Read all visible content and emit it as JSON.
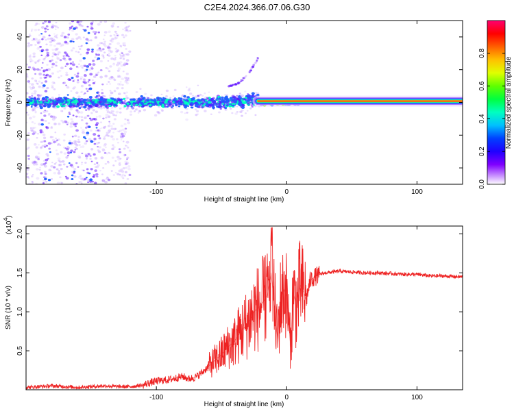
{
  "title": "C2E4.2024.366.07.06.G30",
  "chart_data": [
    {
      "type": "heatmap",
      "title": "C2E4.2024.366.07.06.G30",
      "xlabel": "Height of straight line (km)",
      "ylabel": "Frequency (Hz)",
      "xlim": [
        -200,
        135
      ],
      "ylim": [
        -50,
        50
      ],
      "x_ticks": [
        -100,
        0,
        100
      ],
      "x_tick_labels": [
        "-100",
        "0",
        "100"
      ],
      "y_ticks": [
        -40,
        -20,
        0,
        20,
        40
      ],
      "y_tick_labels": [
        "-40",
        "-20",
        "0",
        "20",
        "40"
      ],
      "colorbar": {
        "label": "Normalized spectral amplitude",
        "range": [
          0.0,
          1.0
        ],
        "ticks": [
          0.0,
          0.2,
          0.4,
          0.6,
          0.8
        ],
        "tick_labels": [
          "0.0",
          "0.2",
          "0.4",
          "0.6",
          "0.8"
        ],
        "colors": [
          "#ffffff",
          "#8000ff",
          "#0000ff",
          "#00ffff",
          "#00ff00",
          "#ffff00",
          "#ff8000",
          "#ff0000",
          "#ff0080"
        ]
      },
      "features": {
        "carrier_line": {
          "x_start": -22,
          "x_end": 135,
          "frequency": 0.8,
          "amplitude": 0.9
        },
        "scatter_band_x": [
          -200,
          -120
        ],
        "tilted_trail": {
          "x_start": -45,
          "x_end": -22,
          "f_start": 10,
          "f_end": 27
        }
      }
    },
    {
      "type": "line",
      "title": "",
      "xlabel": "Height of straight line (km)",
      "ylabel": "SNR (10 * v/v)",
      "y_multiplier_label": "(x10",
      "y_multiplier_exp": "4",
      "xlim": [
        -200,
        135
      ],
      "ylim": [
        0.0,
        2.1
      ],
      "x_ticks": [
        -100,
        0,
        100
      ],
      "x_tick_labels": [
        "-100",
        "0",
        "100"
      ],
      "y_ticks": [
        0.5,
        1.0,
        1.5,
        2.0
      ],
      "y_tick_labels": [
        "0.5",
        "1.0",
        "1.5",
        "2.0"
      ],
      "color": "#ee2222",
      "series": [
        {
          "name": "SNR",
          "x": [
            -200,
            -190,
            -180,
            -170,
            -160,
            -150,
            -140,
            -130,
            -120,
            -110,
            -105,
            -100,
            -95,
            -90,
            -85,
            -80,
            -75,
            -70,
            -65,
            -60,
            -55,
            -50,
            -45,
            -40,
            -35,
            -30,
            -25,
            -20,
            -15,
            -12,
            -10,
            -7,
            -5,
            -2,
            0,
            3,
            5,
            8,
            10,
            12,
            15,
            18,
            20,
            25,
            30,
            35,
            40,
            50,
            60,
            70,
            80,
            90,
            100,
            110,
            120,
            130,
            135
          ],
          "y": [
            0.03,
            0.04,
            0.05,
            0.04,
            0.03,
            0.04,
            0.05,
            0.04,
            0.04,
            0.06,
            0.09,
            0.11,
            0.12,
            0.13,
            0.15,
            0.17,
            0.14,
            0.16,
            0.22,
            0.3,
            0.38,
            0.45,
            0.55,
            0.62,
            0.75,
            0.85,
            1.0,
            1.08,
            1.2,
            1.5,
            1.18,
            0.65,
            1.1,
            1.3,
            1.2,
            0.55,
            1.25,
            1.05,
            1.35,
            1.3,
            1.15,
            1.4,
            1.43,
            1.48,
            1.5,
            1.51,
            1.52,
            1.51,
            1.5,
            1.5,
            1.49,
            1.48,
            1.48,
            1.46,
            1.46,
            1.45,
            1.45
          ]
        }
      ]
    }
  ]
}
